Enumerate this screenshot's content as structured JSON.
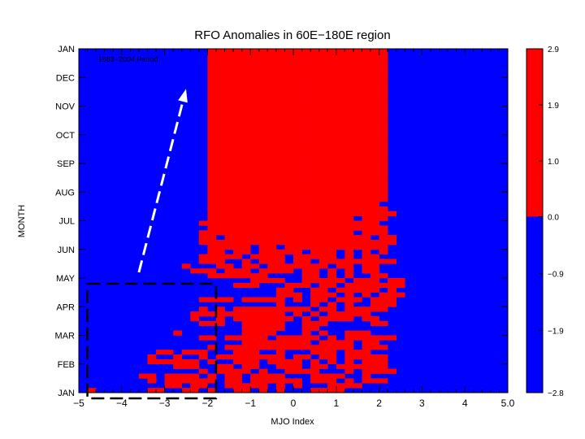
{
  "chart_data": {
    "type": "heatmap",
    "title": "RFO Anomalies in 60E−180E region",
    "subtitle": "1983−2004 Period",
    "xlabel": "MJO Index",
    "ylabel": "MONTH",
    "x_ticks": [
      "−5",
      "−4",
      "−3",
      "−2",
      "−1",
      "0",
      "1",
      "2",
      "3",
      "4",
      "5.0"
    ],
    "xlim": [
      -5,
      5
    ],
    "y_labels": [
      "JAN",
      "FEB",
      "MAR",
      "APR",
      "MAY",
      "JUN",
      "JUL",
      "AUG",
      "SEP",
      "OCT",
      "NOV",
      "DEC",
      "JAN"
    ],
    "x_bin_width": 0.2,
    "x_start": -5,
    "colorbar": {
      "ticks": [
        "2.9",
        "1.9",
        "1.0",
        "0.0",
        "−0.9",
        "−1.9",
        "−2.8"
      ],
      "range": [
        -2.8,
        2.9
      ],
      "positive_color": "#ff0000",
      "negative_color": "#0000ff"
    },
    "colors": {
      "positive": "#ff0000",
      "negative": "#0000ff"
    },
    "positive_cells": [
      [
        "01000000110011010011010100011110000000000000000000",
        "00000000001101100111110101000111100000000000000000",
        "00000000101111110110111111011101011100000000000000",
        "00000001101111010110111100011110010000000000000000",
        "00000000000000101111010011110001011110000000000000",
        "00000000000111001101100111011011111100000000000000"
      ],
      [
        "00000000111111010011101111010101011100000000000000",
        "00000000100100101111111101101101111100000000000000",
        "00000000011011100011100100011101110000000000000000",
        "00000000000000010111111111111111011100000000000000",
        "00000000000000000001111111101111011000000000000000",
        "00000000000000110111110111110101111110000000000000"
      ],
      [
        "00000000000100000001111000101001110000000000000000",
        "00000000000000000001111100110000000000000000000000",
        "00000000000000111001111100111000001100000000000000",
        "00000000000001001011111110101111011000000000000000",
        "00000000000001111111111101010111110000000000000000",
        "00000000000000101011111111101101111100000000000000"
      ],
      [
        "00000000000000000000000100010101001110000000000000",
        "00000000000000111101111101011011101110000000000000",
        "00000000000000000000000111011101010111000000000000",
        "00000000000000000000000110011011111010000000000000",
        "00000000000000000011100011101101111111000000000000",
        "00000000000000000000111100111110111011000000000000"
      ],
      [
        "00000000000000011111110000110101001100000000000000",
        "00000000000001110111011110110101011000000000000000",
        "00000000000010001101101111111011011000000000000000",
        "00000000000000111001011101101111111110000000000000",
        "00000000000000111110111101111101011000000000000000",
        "00000000000000011011011111011101010100000000000000"
      ],
      [
        "00000000000000011111011011111111111100000000000000",
        "00000000000000111111111111111111111110000000000000",
        "00000000000000110111111111111111110110000000000000",
        "00000000000000111111111111111111011100000000000000",
        "00000000000000011111111111111111111100000000000000",
        "00000000000000111111111111111111111000000000000000"
      ],
      [
        "00000000000000011111111111111111011100000000000000",
        "00000000000000011111111111111111111110000000000000",
        "00000000000000011111111111111111111100000000000000",
        "00000000000000011111111111111111111000000000000000",
        "00000000000000011111111111111111111100000000000000",
        "00000000000000011111111111111111111100000000000000"
      ],
      [
        "00000000000000011111111111111111111100000000000000",
        "00000000000000011111111111111111111100000000000000",
        "00000000000000011111111111111111111100000000000000",
        "00000000000000011111111111111111111100000000000000",
        "00000000000000011111111111111111111100000000000000",
        "00000000000000011111111111111111111100000000000000"
      ],
      [
        "00000000000000011111111111111111111100000000000000",
        "00000000000000011111111111111111111100000000000000",
        "00000000000000011111111111111111111100000000000000",
        "00000000000000011111111111111111111100000000000000",
        "00000000000000011111111111111111111100000000000000",
        "00000000000000011111111111111111111100000000000000"
      ],
      [
        "00000000000000011111111111111111111100000000000000",
        "00000000000000011111111111111111111100000000000000",
        "00000000000000011111111111111111111100000000000000",
        "00000000000000011111111111111111111100000000000000",
        "00000000000000011111111111111111111100000000000000",
        "00000000000000011111111111111111111100000000000000"
      ],
      [
        "00000000000000011111111111111111111100000000000000",
        "00000000000000011111111111111111111100000000000000",
        "00000000000000011111111111111111111100000000000000",
        "00000000000000011111111111111111111100000000000000",
        "00000000000000011111111111111111111100000000000000",
        "00000000000000011111111111111111111100000000000000"
      ],
      [
        "00000000000000011111111111111111111100000000000000",
        "00000000000000011111111111111111111100000000000000",
        "00000000000000011111111111111111111100000000000000",
        "00000000000000011111111111111111111100000000000000",
        "00000000000000011111111111111111111100000000000000",
        "00000000000000011111111111111111111100000000000000"
      ]
    ],
    "annotations": {
      "arrow": {
        "from": [
          -3.6,
          4.2
        ],
        "to": [
          -2.5,
          10.6
        ]
      },
      "box": {
        "x": [
          -4.8,
          -1.8
        ],
        "y": [
          -0.2,
          3.8
        ]
      }
    }
  }
}
